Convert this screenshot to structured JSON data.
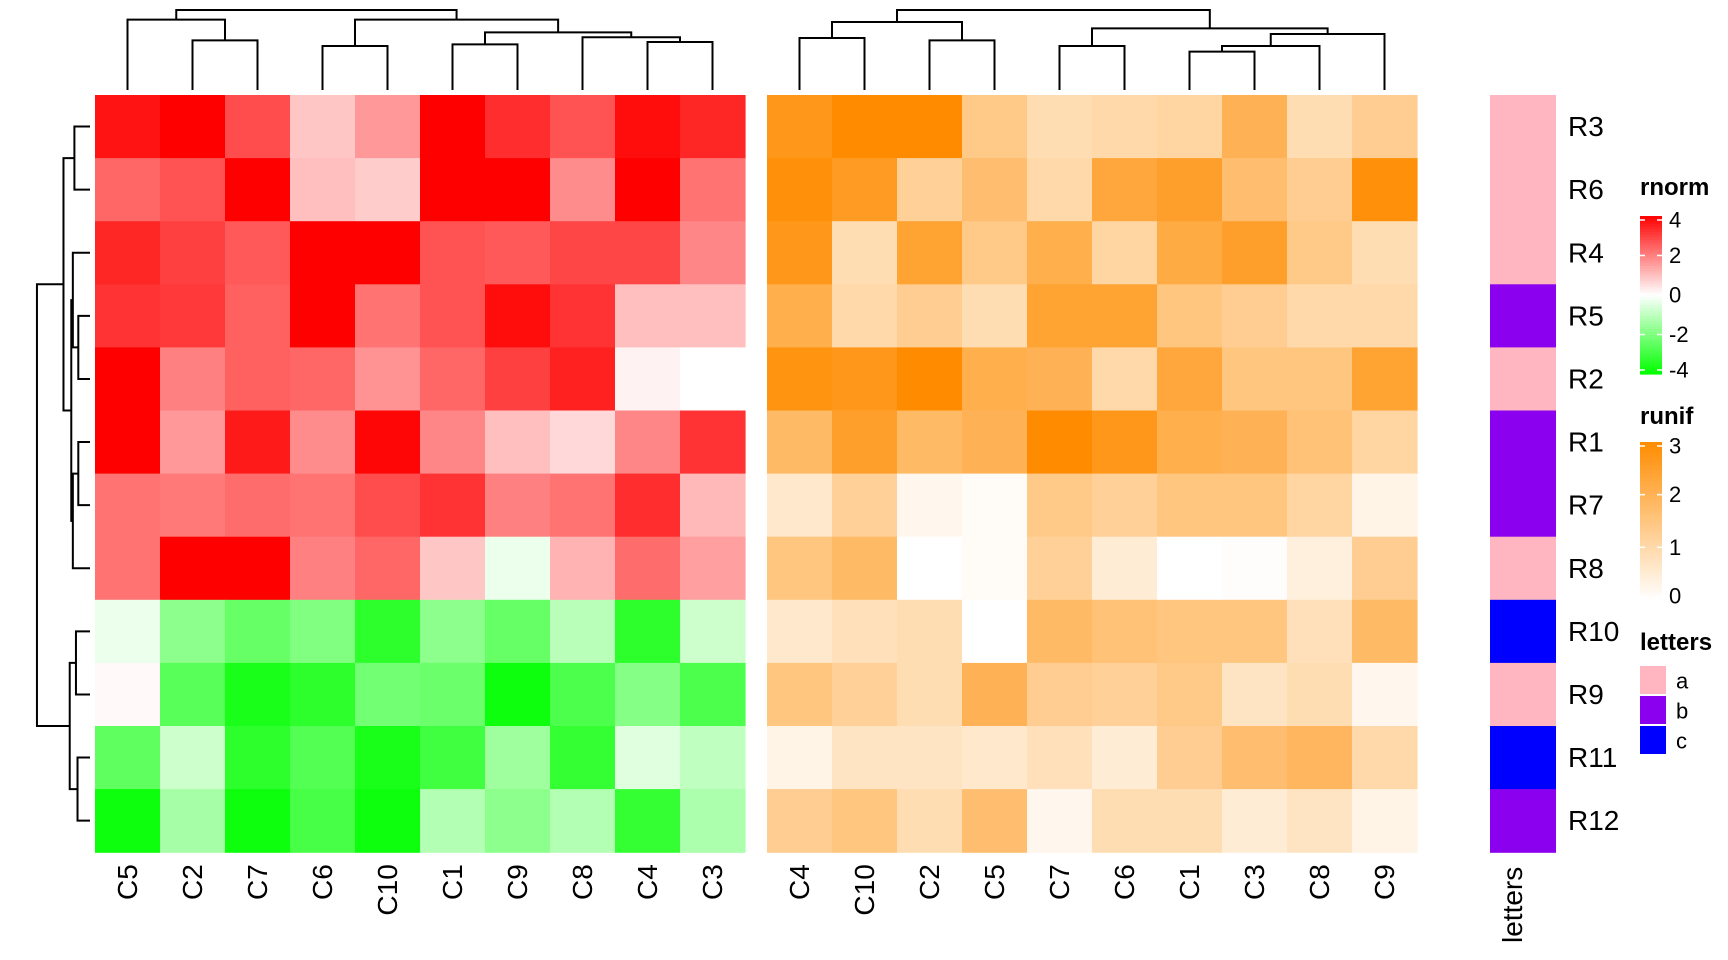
{
  "chart_data": {
    "type": "heatmap",
    "rows": [
      "R3",
      "R6",
      "R4",
      "R5",
      "R2",
      "R1",
      "R7",
      "R8",
      "R10",
      "R9",
      "R11",
      "R12"
    ],
    "heatmaps": [
      {
        "name": "rnorm",
        "columns": [
          "C5",
          "C2",
          "C7",
          "C6",
          "C10",
          "C1",
          "C9",
          "C8",
          "C4",
          "C3"
        ],
        "values": [
          [
            3.7,
            4.0,
            2.8,
            0.9,
            1.6,
            4.0,
            3.3,
            2.7,
            3.8,
            3.4
          ],
          [
            2.4,
            2.7,
            4.0,
            1.0,
            0.8,
            4.0,
            4.0,
            1.8,
            4.0,
            2.2
          ],
          [
            3.4,
            3.0,
            2.6,
            4.0,
            4.0,
            2.7,
            2.6,
            2.9,
            2.9,
            1.9
          ],
          [
            3.2,
            3.1,
            2.5,
            4.0,
            2.2,
            2.7,
            3.8,
            3.2,
            1.0,
            1.0
          ],
          [
            4.0,
            2.0,
            2.5,
            2.4,
            1.7,
            2.4,
            3.0,
            3.5,
            0.2,
            0.0
          ],
          [
            4.0,
            1.6,
            3.6,
            1.8,
            3.9,
            1.9,
            1.0,
            0.6,
            1.9,
            3.2
          ],
          [
            2.2,
            2.1,
            2.3,
            2.2,
            2.8,
            3.2,
            2.0,
            2.2,
            3.3,
            1.1
          ],
          [
            2.2,
            4.0,
            4.0,
            2.0,
            2.4,
            0.9,
            -0.3,
            1.2,
            2.3,
            1.5
          ],
          [
            -0.3,
            -1.8,
            -2.4,
            -2.0,
            -3.3,
            -1.8,
            -2.4,
            -1.1,
            -3.3,
            -0.8
          ],
          [
            0.1,
            -2.6,
            -3.6,
            -3.3,
            -2.2,
            -2.3,
            -3.8,
            -2.8,
            -1.9,
            -2.8
          ],
          [
            -2.5,
            -0.8,
            -3.3,
            -2.7,
            -3.6,
            -3.0,
            -1.5,
            -3.2,
            -0.5,
            -1.0
          ],
          [
            -3.8,
            -1.4,
            -3.8,
            -2.9,
            -3.8,
            -1.2,
            -1.8,
            -1.2,
            -3.2,
            -1.3
          ]
        ]
      },
      {
        "name": "runif",
        "columns": [
          "C4",
          "C10",
          "C2",
          "C5",
          "C7",
          "C6",
          "C1",
          "C3",
          "C8",
          "C9"
        ],
        "values": [
          [
            2.7,
            3.0,
            3.0,
            1.4,
            0.9,
            1.0,
            1.1,
            2.0,
            0.9,
            1.3
          ],
          [
            2.9,
            2.6,
            1.2,
            1.7,
            1.0,
            2.3,
            2.5,
            1.7,
            1.3,
            2.9
          ],
          [
            2.7,
            0.9,
            2.4,
            1.4,
            2.1,
            1.1,
            2.2,
            2.5,
            1.4,
            0.9
          ],
          [
            2.1,
            1.0,
            1.3,
            0.9,
            2.4,
            2.4,
            1.5,
            1.3,
            1.0,
            1.0
          ],
          [
            2.8,
            2.7,
            3.1,
            2.1,
            2.0,
            1.0,
            2.3,
            1.5,
            1.5,
            2.4
          ],
          [
            1.8,
            2.5,
            1.8,
            2.0,
            3.1,
            2.7,
            2.1,
            2.0,
            1.6,
            1.1
          ],
          [
            0.6,
            1.2,
            0.2,
            0.1,
            1.4,
            1.2,
            1.5,
            1.5,
            1.1,
            0.3
          ],
          [
            1.5,
            1.8,
            0.0,
            0.1,
            1.2,
            0.5,
            0.0,
            0.05,
            0.4,
            1.3
          ],
          [
            0.6,
            0.8,
            0.9,
            0.0,
            1.8,
            1.6,
            1.5,
            1.5,
            0.8,
            1.8
          ],
          [
            1.5,
            1.2,
            0.9,
            2.0,
            1.3,
            1.2,
            1.4,
            0.7,
            0.9,
            0.2
          ],
          [
            0.3,
            0.7,
            0.7,
            0.6,
            0.8,
            0.5,
            1.3,
            1.7,
            1.9,
            1.0
          ],
          [
            1.3,
            1.5,
            0.9,
            1.7,
            0.2,
            0.9,
            0.9,
            0.5,
            0.7,
            0.3
          ]
        ]
      }
    ],
    "annotation": {
      "name": "letters",
      "label": "letters",
      "values": [
        "a",
        "a",
        "a",
        "b",
        "a",
        "b",
        "b",
        "a",
        "c",
        "a",
        "c",
        "b"
      ]
    },
    "legends": [
      {
        "title": "rnorm",
        "ticks": [
          "4",
          "2",
          "0",
          "-2",
          "-4"
        ],
        "range": [
          -4,
          4
        ],
        "colors": [
          "#00ff00",
          "#ffffff",
          "#ff0000"
        ]
      },
      {
        "title": "runif",
        "ticks": [
          "3",
          "2",
          "1",
          "0"
        ],
        "range": [
          0,
          3
        ],
        "colors": [
          "#ffffff",
          "#ff8c00"
        ]
      },
      {
        "title": "letters",
        "entries": [
          {
            "label": "a",
            "color": "#ffb6c1"
          },
          {
            "label": "b",
            "color": "#8b00ee"
          },
          {
            "label": "c",
            "color": "#0000ff"
          }
        ]
      }
    ],
    "grid": false,
    "legend_position": "right"
  }
}
